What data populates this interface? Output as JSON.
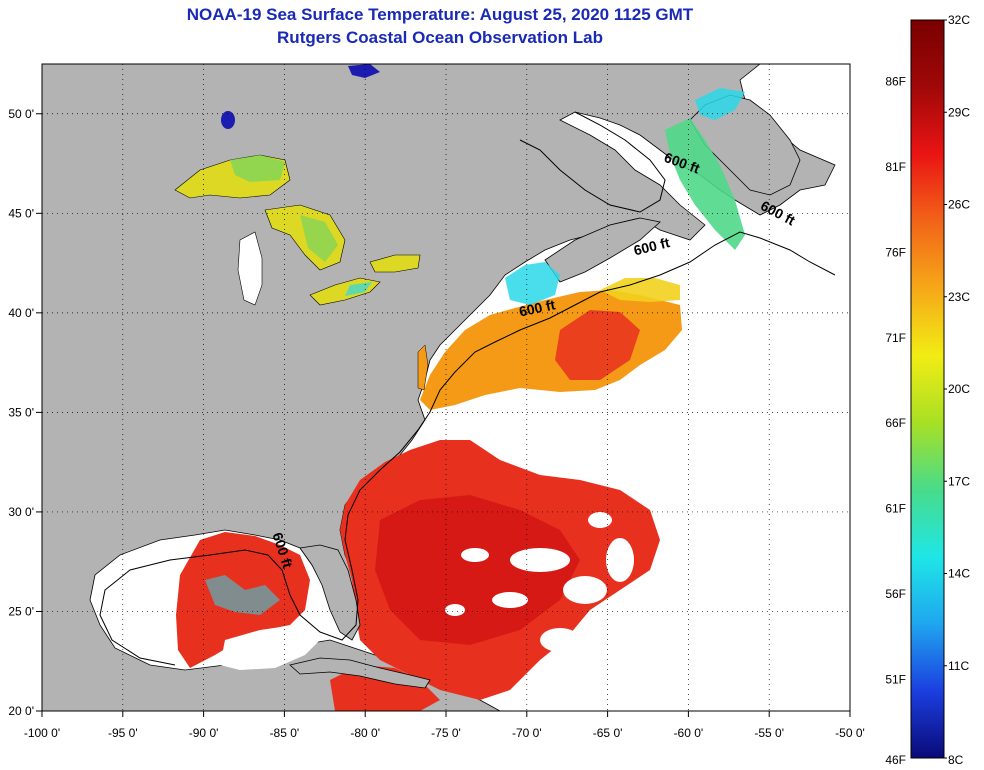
{
  "title": {
    "line1": "NOAA-19 Sea Surface Temperature:  August 25, 2020 1125 GMT",
    "line2": "Rutgers Coastal Ocean Observation Lab"
  },
  "map": {
    "lon_range": [
      -100,
      -50
    ],
    "lat_range": [
      20,
      52.5
    ],
    "x_ticks": [
      {
        "lon": -100,
        "label": "-100 0'"
      },
      {
        "lon": -95,
        "label": "-95 0'"
      },
      {
        "lon": -90,
        "label": "-90 0'"
      },
      {
        "lon": -85,
        "label": "-85 0'"
      },
      {
        "lon": -80,
        "label": "-80 0'"
      },
      {
        "lon": -75,
        "label": "-75 0'"
      },
      {
        "lon": -70,
        "label": "-70 0'"
      },
      {
        "lon": -65,
        "label": "-65 0'"
      },
      {
        "lon": -60,
        "label": "-60 0'"
      },
      {
        "lon": -55,
        "label": "-55 0'"
      },
      {
        "lon": -50,
        "label": "-50 0'"
      }
    ],
    "y_ticks": [
      {
        "lat": 20,
        "label": "20 0'"
      },
      {
        "lat": 25,
        "label": "25 0'"
      },
      {
        "lat": 30,
        "label": "30 0'"
      },
      {
        "lat": 35,
        "label": "35 0'"
      },
      {
        "lat": 40,
        "label": "40 0'"
      },
      {
        "lat": 45,
        "label": "45 0'"
      },
      {
        "lat": 50,
        "label": "50 0'"
      }
    ],
    "contour_labels": [
      {
        "text": "600 ft",
        "lon": -60.5,
        "lat": 47.3,
        "rot": 20
      },
      {
        "text": "600 ft",
        "lon": -54.6,
        "lat": 44.8,
        "rot": 28
      },
      {
        "text": "600 ft",
        "lon": -62.2,
        "lat": 43.1,
        "rot": -14
      },
      {
        "text": "600 ft",
        "lon": -69.3,
        "lat": 40.0,
        "rot": -12
      },
      {
        "text": "600 ft",
        "lon": -85.4,
        "lat": 28.0,
        "rot": 72
      }
    ],
    "colors": {
      "land": "#b3b3b3",
      "cloud": "#ffffff",
      "ocean_warm": "#e8301e",
      "ocean_hot": "#d21414",
      "gulf_stream_orange": "#f59a16",
      "lake_yellow": "#dcd824",
      "lake_green": "#7fd45a",
      "cold_cyan": "#2ad8ea",
      "lake_blue": "#1c1cb0"
    }
  },
  "colorbar": {
    "c_labels": [
      "32C",
      "29C",
      "26C",
      "23C",
      "20C",
      "17C",
      "14C",
      "11C",
      "8C"
    ],
    "f_labels": [
      "86F",
      "81F",
      "76F",
      "71F",
      "66F",
      "61F",
      "56F",
      "51F",
      "46F"
    ],
    "c_min": 8,
    "c_max": 32,
    "stops": [
      "#0a0a78",
      "#1b3fe0",
      "#1fa6ef",
      "#1fe6e6",
      "#48dc8a",
      "#a8e024",
      "#f2ec14",
      "#f6a818",
      "#f26418",
      "#ea1414",
      "#a00808",
      "#7a0000"
    ]
  }
}
